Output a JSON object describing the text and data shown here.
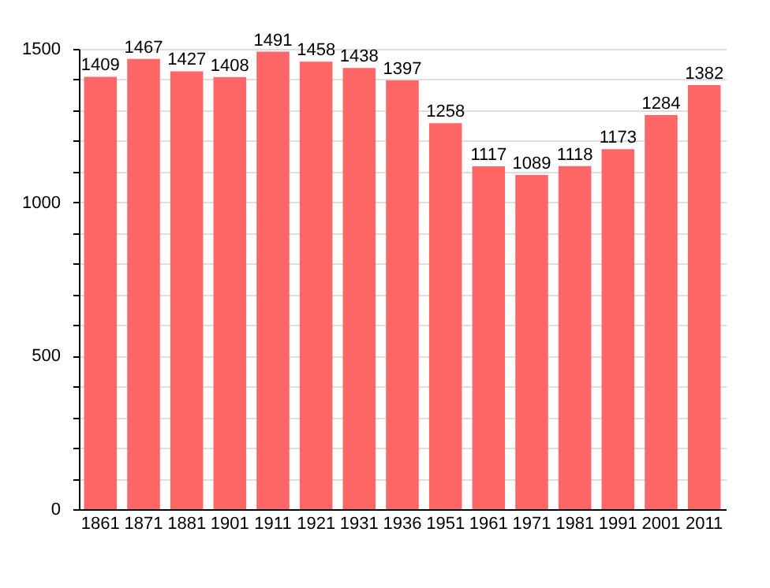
{
  "chart_data": {
    "type": "bar",
    "categories": [
      "1861",
      "1871",
      "1881",
      "1901",
      "1911",
      "1921",
      "1931",
      "1936",
      "1951",
      "1961",
      "1971",
      "1981",
      "1991",
      "2001",
      "2011"
    ],
    "values": [
      1409,
      1467,
      1427,
      1408,
      1491,
      1458,
      1438,
      1397,
      1258,
      1117,
      1089,
      1118,
      1173,
      1284,
      1382
    ],
    "color": "#ff6666",
    "ylim": [
      0,
      1500
    ],
    "yticks": [
      0,
      {
        "value": 100,
        "label": null
      },
      {
        "value": 200,
        "label": null
      },
      {
        "value": 300,
        "label": null
      },
      {
        "value": 400,
        "label": null
      },
      500,
      {
        "value": 600,
        "label": null
      },
      {
        "value": 700,
        "label": null
      },
      {
        "value": 800,
        "label": null
      },
      {
        "value": 900,
        "label": null
      },
      1000,
      {
        "value": 1100,
        "label": null
      },
      {
        "value": 1200,
        "label": null
      },
      {
        "value": 1300,
        "label": null
      },
      {
        "value": 1400,
        "label": null
      },
      1500
    ],
    "grid": true,
    "data_labels": true
  }
}
